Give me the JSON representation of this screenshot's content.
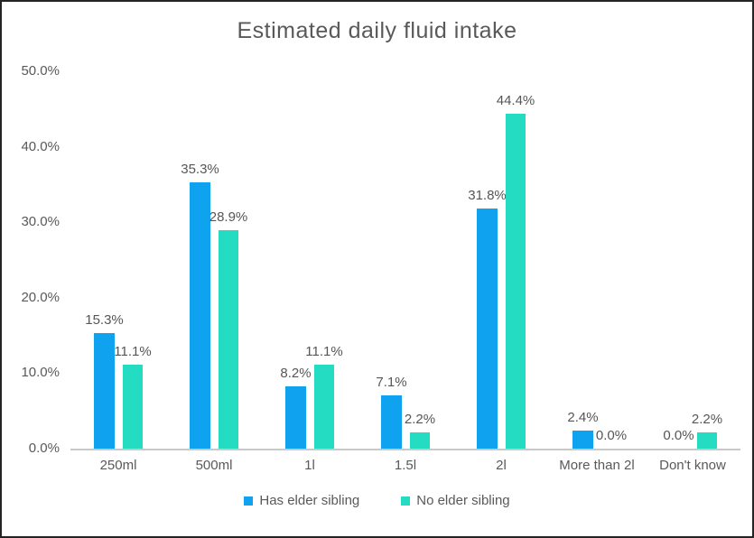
{
  "chart_data": {
    "type": "bar",
    "title": "Estimated daily fluid intake",
    "categories": [
      "250ml",
      "500ml",
      "1l",
      "1.5l",
      "2l",
      "More than 2l",
      "Don't know"
    ],
    "series": [
      {
        "name": "Has elder sibling",
        "color": "#0EA2EF",
        "values": [
          15.3,
          35.3,
          8.2,
          7.1,
          31.8,
          2.4,
          0.0
        ],
        "labels": [
          "15.3%",
          "35.3%",
          "8.2%",
          "7.1%",
          "31.8%",
          "2.4%",
          "0.0%"
        ]
      },
      {
        "name": "No elder sibling",
        "color": "#23DCC2",
        "values": [
          11.1,
          28.9,
          11.1,
          2.2,
          44.4,
          0.0,
          2.2
        ],
        "labels": [
          "11.1%",
          "28.9%",
          "11.1%",
          "2.2%",
          "44.4%",
          "0.0%",
          "2.2%"
        ]
      }
    ],
    "ylim": [
      0,
      50
    ],
    "yticks": [
      "0.0%",
      "10.0%",
      "20.0%",
      "30.0%",
      "40.0%",
      "50.0%"
    ],
    "grid": false,
    "legend_position": "bottom",
    "text_color": "#595959",
    "axis_color": "#C9C9C9"
  }
}
